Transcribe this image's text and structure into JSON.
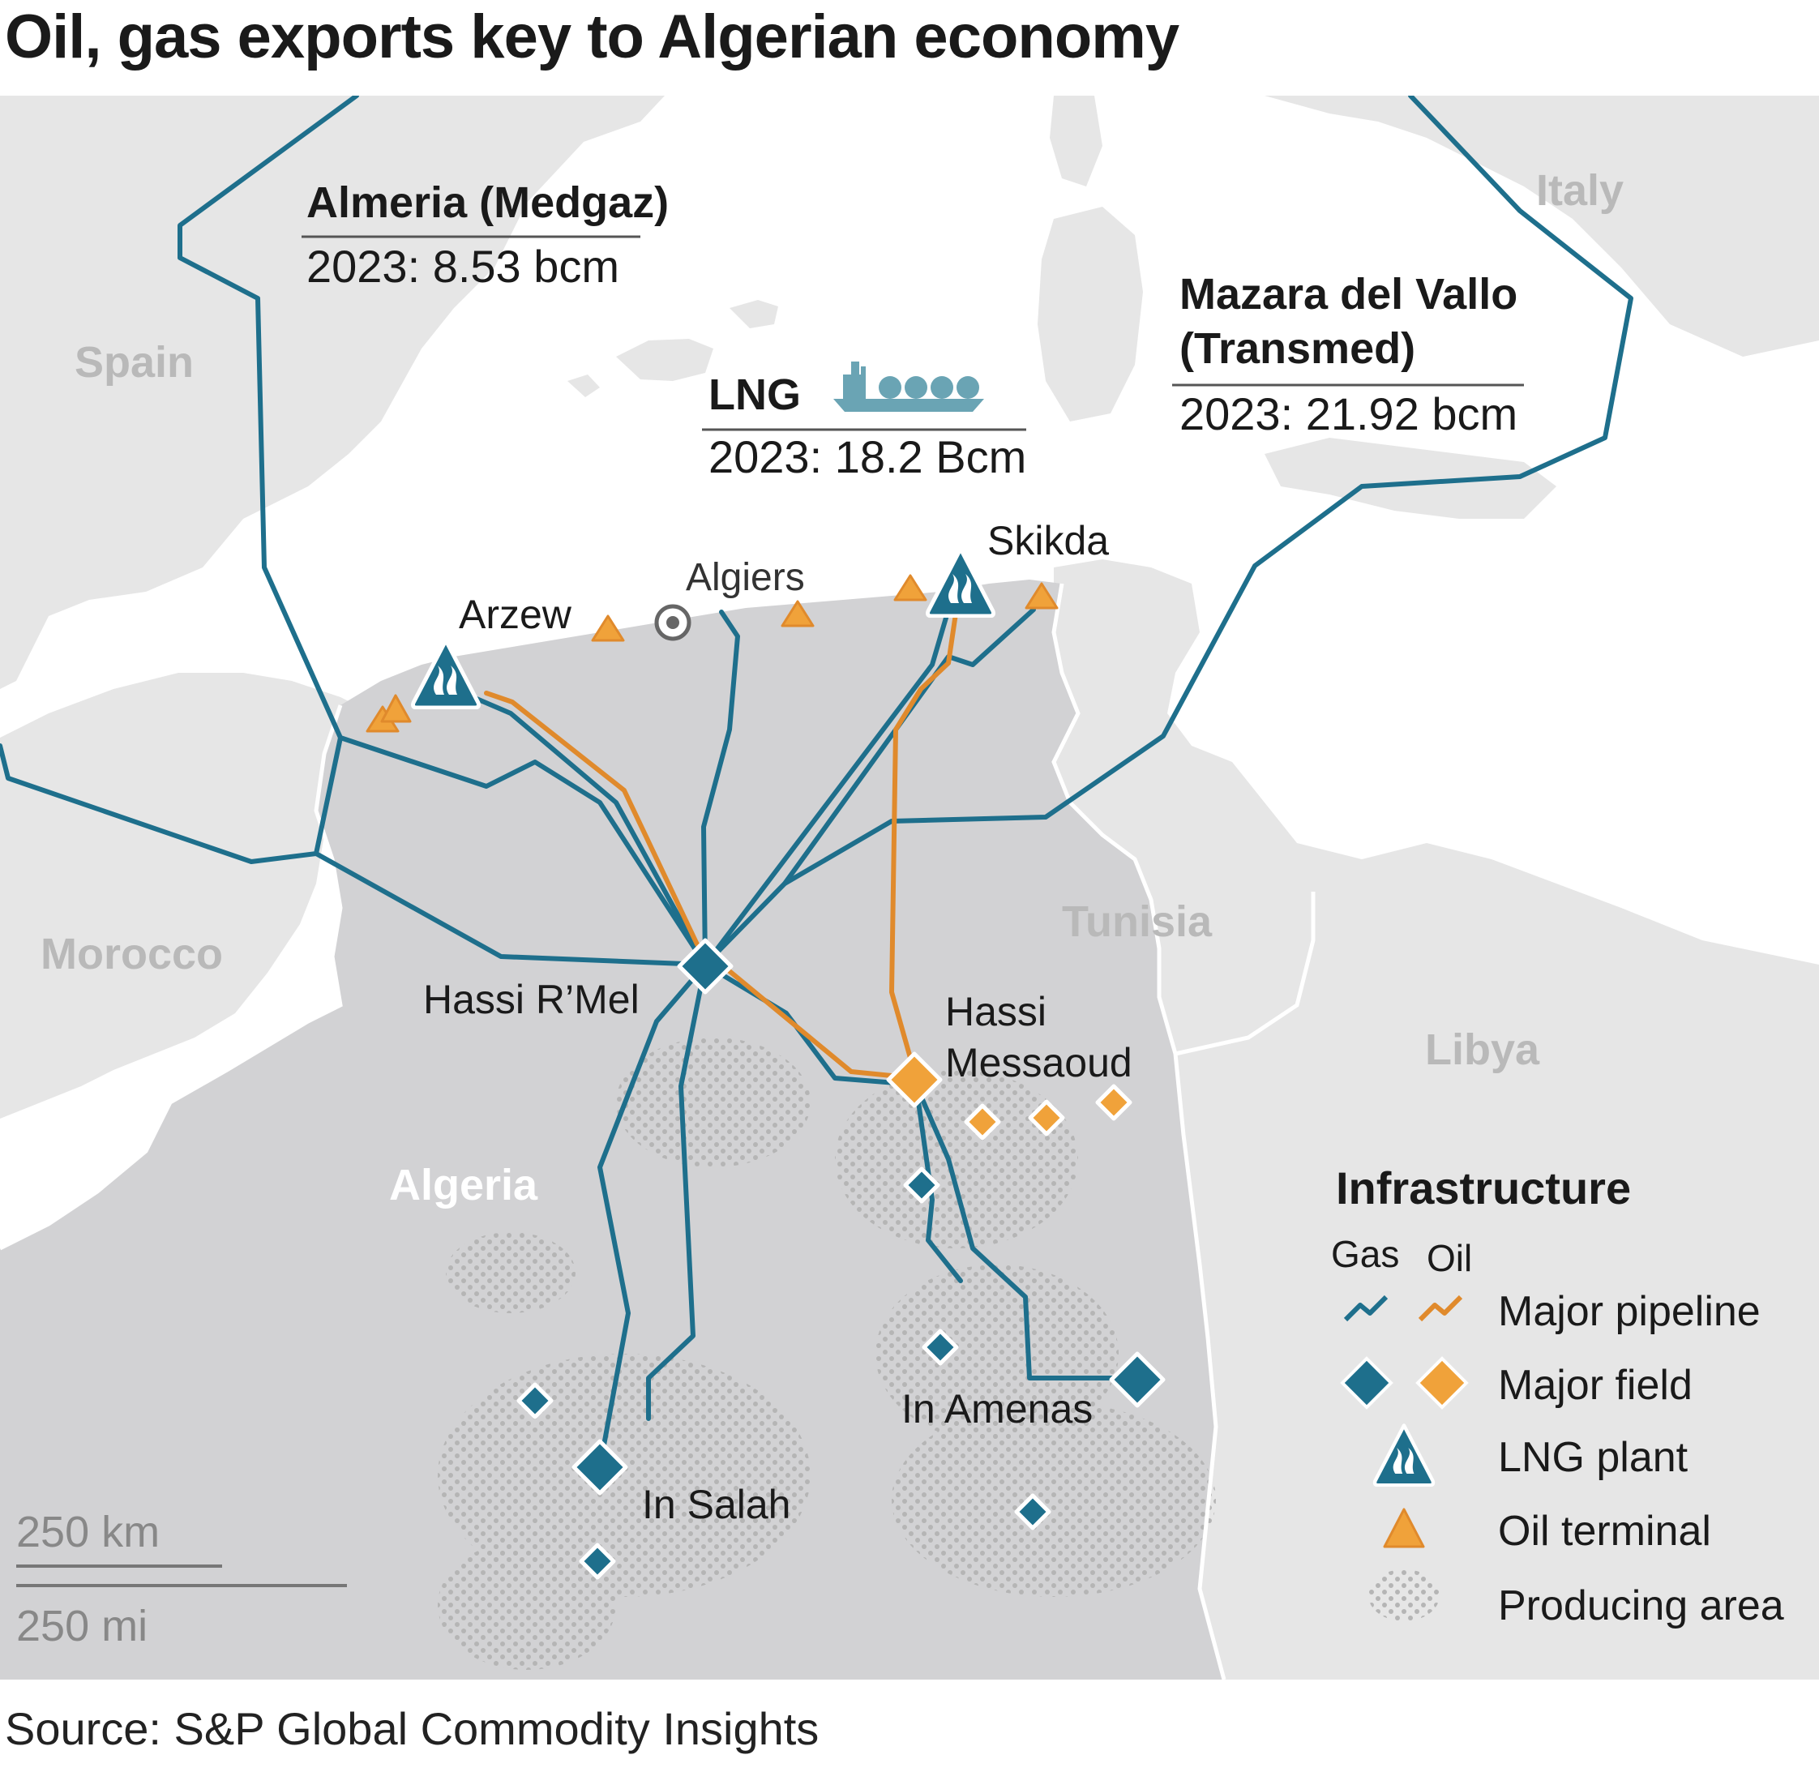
{
  "title": "Oil, gas exports key to Algerian economy",
  "source": "Source: S&P Global Commodity Insights",
  "colors": {
    "sea": "#ffffff",
    "land": "#e6e6e6",
    "algeria": "#d2d2d4",
    "gas": "#1e6f8c",
    "oil": "#e08a2c",
    "oil_fill": "#f0a23a",
    "producing": "#bdbdbd"
  },
  "countries": {
    "spain": "Spain",
    "morocco": "Morocco",
    "algeria": "Algeria",
    "tunisia": "Tunisia",
    "libya": "Libya",
    "italy": "Italy"
  },
  "places": {
    "algiers": "Algiers",
    "arzew": "Arzew",
    "skikda": "Skikda",
    "hassi_rmel": "Hassi R’Mel",
    "hassi_messaoud_1": "Hassi",
    "hassi_messaoud_2": "Messaoud",
    "in_amenas": "In Amenas",
    "in_salah": "In Salah"
  },
  "export_routes": {
    "medgaz": {
      "name": "Almeria (Medgaz)",
      "value": "2023: 8.53 bcm"
    },
    "lng": {
      "name": "LNG",
      "value": "2023: 18.2 Bcm",
      "icon": "lng-ship-icon"
    },
    "transmed": {
      "name_1": "Mazara del Vallo",
      "name_2": "(Transmed)",
      "value": "2023: 21.92 bcm"
    }
  },
  "legend": {
    "title": "Infrastructure",
    "gas": "Gas",
    "oil": "Oil",
    "items": [
      {
        "label": "Major pipeline",
        "icon": "pipeline-icon"
      },
      {
        "label": "Major field",
        "icon": "field-diamond-icon"
      },
      {
        "label": "LNG plant",
        "icon": "lng-plant-icon"
      },
      {
        "label": "Oil terminal",
        "icon": "oil-terminal-icon"
      },
      {
        "label": "Producing area",
        "icon": "producing-area-icon"
      }
    ]
  },
  "scale": {
    "km": "250 km",
    "mi": "250 mi"
  }
}
